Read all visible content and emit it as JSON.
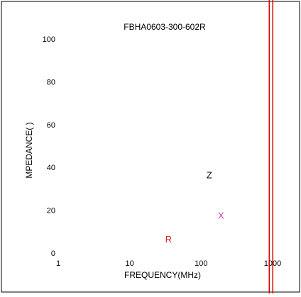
{
  "chart_data": {
    "type": "line",
    "title": "FBHA0603-300-602R",
    "xlabel": "FREQUENCY(MHz)",
    "ylabel": "MPEDANCE(   )",
    "x_scale": "log",
    "xlim": [
      1,
      1000
    ],
    "ylim": [
      0,
      100
    ],
    "x_ticks": [
      "1",
      "10",
      "100",
      "1000"
    ],
    "y_ticks": [
      "0",
      "20",
      "40",
      "60",
      "80",
      "100"
    ],
    "grid": false,
    "series": [
      {
        "name": "Z",
        "color": "#000000",
        "label_position": {
          "x": 130,
          "y": 35
        },
        "values": []
      },
      {
        "name": "X",
        "color": "#d040b0",
        "label_position": {
          "x": 190,
          "y": 16
        },
        "values": []
      },
      {
        "name": "R",
        "color": "#e02020",
        "label_position": {
          "x": 35,
          "y": 5
        },
        "values": []
      }
    ],
    "vertical_markers": [
      {
        "x": 950,
        "color": "#e00000"
      }
    ]
  }
}
